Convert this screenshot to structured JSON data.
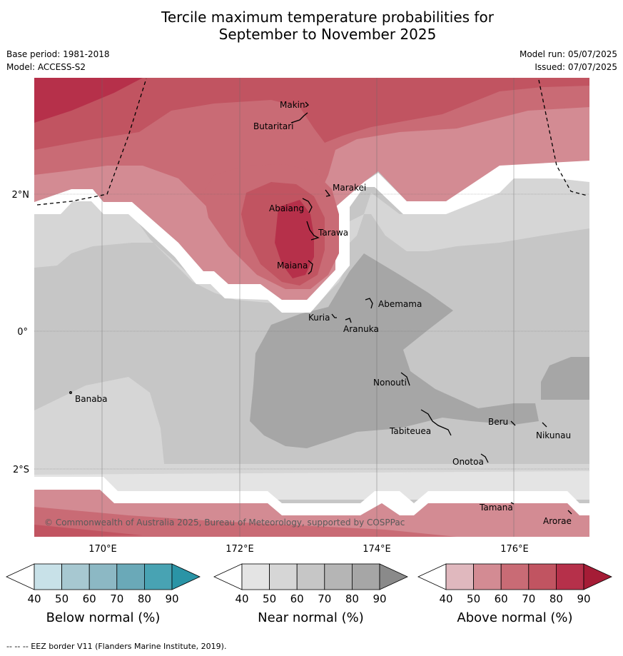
{
  "title_line1": "Tercile maximum temperature probabilities for",
  "title_line2": "September to November 2025",
  "base_period": "Base period: 1981-2018",
  "model": "Model: ACCESS-S2",
  "model_run": "Model run: 05/07/2025",
  "issued": "Issued: 07/07/2025",
  "copyright": "© Commonwealth of Australia 2025, Bureau of Meteorology, supported by COSPPac",
  "footer": "--  --  -- EEZ border V11 (Flanders Marine Institute, 2019).",
  "lon_labels": [
    "170°E",
    "172°E",
    "174°E",
    "176°E"
  ],
  "lat_labels": [
    "2°N",
    "0°",
    "2°S"
  ],
  "places": [
    "Makin",
    "Butaritari",
    "Marakei",
    "Abaiang",
    "Tarawa",
    "Maiana",
    "Abemama",
    "Kuria",
    "Aranuka",
    "Nonouti",
    "Banaba",
    "Beru",
    "Nikunau",
    "Tabiteuea",
    "Onotoa",
    "Tamana",
    "Arorae"
  ],
  "colorbars": [
    {
      "title": "Below normal (%)",
      "ticks": [
        "40",
        "50",
        "60",
        "70",
        "80",
        "90"
      ],
      "colors": [
        "#ffffff",
        "#c8e1e8",
        "#a7c8d1",
        "#8cb8c4",
        "#6aa9b8",
        "#48a3b3",
        "#2a94a6"
      ]
    },
    {
      "title": "Near normal (%)",
      "ticks": [
        "40",
        "50",
        "60",
        "70",
        "80",
        "90"
      ],
      "colors": [
        "#ffffff",
        "#e4e4e4",
        "#d6d6d6",
        "#c6c6c6",
        "#b5b5b5",
        "#a6a6a6",
        "#8a8a8a"
      ]
    },
    {
      "title": "Above normal (%)",
      "ticks": [
        "40",
        "50",
        "60",
        "70",
        "80",
        "90"
      ],
      "colors": [
        "#ffffff",
        "#e0b8be",
        "#d38b93",
        "#c96b75",
        "#c15461",
        "#b6304a",
        "#a51c36"
      ]
    }
  ]
}
